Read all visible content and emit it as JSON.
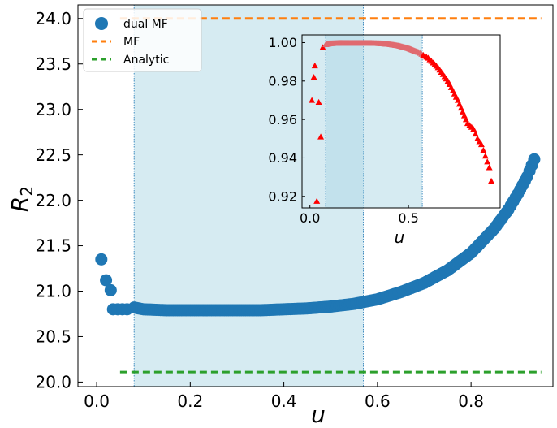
{
  "chart_data": [
    {
      "type": "scatter",
      "xlabel": "u",
      "ylabel": "R_2",
      "xlim": [
        -0.04,
        0.975
      ],
      "ylim": [
        19.95,
        24.15
      ],
      "xticks": [
        "0.0",
        "0.2",
        "0.4",
        "0.6",
        "0.8"
      ],
      "xtick_values": [
        0.0,
        0.2,
        0.4,
        0.6,
        0.8
      ],
      "yticks": [
        "20.0",
        "20.5",
        "21.0",
        "21.5",
        "22.0",
        "22.5",
        "23.0",
        "23.5",
        "24.0"
      ],
      "ytick_values": [
        20.0,
        20.5,
        21.0,
        21.5,
        22.0,
        22.5,
        23.0,
        23.5,
        24.0
      ],
      "legend_position": "top-left",
      "shaded_region": {
        "x0": 0.08,
        "x1": 0.57,
        "color": "#add8e6"
      },
      "series": [
        {
          "name": "dual MF",
          "kind": "scatter",
          "color": "#1f77b4",
          "x": [
            0.01,
            0.02,
            0.03,
            0.035,
            0.045,
            0.055,
            0.065,
            0.08,
            0.1,
            0.15,
            0.2,
            0.25,
            0.3,
            0.35,
            0.4,
            0.45,
            0.5,
            0.55,
            0.6,
            0.65,
            0.7,
            0.75,
            0.8,
            0.85,
            0.88,
            0.9,
            0.92,
            0.935
          ],
          "y": [
            21.35,
            21.12,
            21.01,
            20.8,
            20.8,
            20.8,
            20.8,
            20.82,
            20.8,
            20.79,
            20.79,
            20.79,
            20.79,
            20.79,
            20.8,
            20.81,
            20.83,
            20.86,
            20.91,
            20.99,
            21.09,
            21.23,
            21.42,
            21.69,
            21.9,
            22.07,
            22.26,
            22.45
          ]
        },
        {
          "name": "MF",
          "kind": "line",
          "color": "#ff7f0e",
          "x": [
            0.05,
            0.95
          ],
          "y": [
            24.0,
            24.0
          ]
        },
        {
          "name": "Analytic",
          "kind": "line",
          "color": "#2ca02c",
          "x": [
            0.05,
            0.95
          ],
          "y": [
            20.11,
            20.11
          ]
        }
      ]
    },
    {
      "type": "scatter",
      "xlabel": "u",
      "ylabel": "",
      "xlim": [
        -0.04,
        0.965
      ],
      "ylim": [
        0.914,
        1.004
      ],
      "xticks": [
        "0.0",
        "0.5"
      ],
      "xtick_values": [
        0.0,
        0.5
      ],
      "yticks": [
        "0.92",
        "0.94",
        "0.96",
        "0.98",
        "1.00"
      ],
      "ytick_values": [
        0.92,
        0.94,
        0.96,
        0.98,
        1.0
      ],
      "shaded_region": {
        "x0": 0.08,
        "x1": 0.57,
        "color": "#add8e6"
      },
      "series": [
        {
          "kind": "triangle",
          "color": "#ff0000",
          "x": [
            0.01,
            0.02,
            0.025,
            0.035,
            0.045,
            0.055,
            0.065,
            0.08,
            0.1,
            0.15,
            0.2,
            0.25,
            0.3,
            0.35,
            0.4,
            0.45,
            0.5,
            0.55,
            0.6,
            0.65,
            0.7,
            0.75,
            0.8,
            0.83,
            0.85,
            0.87,
            0.88,
            0.89,
            0.9,
            0.91,
            0.92
          ],
          "y": [
            0.97,
            0.982,
            0.988,
            0.9175,
            0.969,
            0.951,
            0.9975,
            0.999,
            0.9995,
            0.9998,
            0.9998,
            0.9998,
            0.9998,
            0.9996,
            0.9992,
            0.9984,
            0.997,
            0.995,
            0.992,
            0.987,
            0.98,
            0.97,
            0.958,
            0.955,
            0.95,
            0.947,
            0.944,
            0.941,
            0.938,
            0.935,
            0.928
          ]
        }
      ]
    }
  ]
}
